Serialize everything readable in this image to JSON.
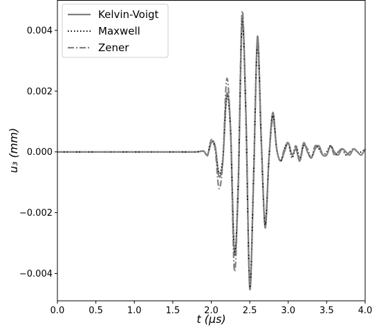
{
  "chart_data": {
    "type": "line",
    "title": "",
    "xlabel": "t (μs)",
    "ylabel": "u₃ (mm)",
    "xlim": [
      0.0,
      4.0
    ],
    "ylim": [
      -0.0049,
      0.005
    ],
    "xticks": [
      {
        "value": 0.0,
        "label": "0.0"
      },
      {
        "value": 0.5,
        "label": "0.5"
      },
      {
        "value": 1.0,
        "label": "1.0"
      },
      {
        "value": 1.5,
        "label": "1.5"
      },
      {
        "value": 2.0,
        "label": "2.0"
      },
      {
        "value": 2.5,
        "label": "2.5"
      },
      {
        "value": 3.0,
        "label": "3.0"
      },
      {
        "value": 3.5,
        "label": "3.5"
      },
      {
        "value": 4.0,
        "label": "4.0"
      }
    ],
    "yticks": [
      {
        "value": 0.004,
        "label": "0.004"
      },
      {
        "value": 0.002,
        "label": "0.002"
      },
      {
        "value": 0.0,
        "label": "0.000"
      },
      {
        "value": -0.002,
        "label": "−0.002"
      },
      {
        "value": -0.004,
        "label": "−0.004"
      }
    ],
    "grid": false,
    "legend_position": "top-left",
    "series": [
      {
        "name": "Kelvin-Voigt",
        "style": "solid",
        "color": "#808080",
        "x": [
          0.0,
          1.5,
          1.8,
          1.9,
          1.95,
          2.0,
          2.05,
          2.1,
          2.15,
          2.2,
          2.25,
          2.3,
          2.35,
          2.4,
          2.45,
          2.5,
          2.55,
          2.6,
          2.65,
          2.7,
          2.75,
          2.8,
          2.85,
          2.9,
          2.95,
          3.0,
          3.05,
          3.1,
          3.15,
          3.2,
          3.25,
          3.3,
          3.35,
          3.4,
          3.45,
          3.5,
          3.55,
          3.6,
          3.65,
          3.7,
          3.75,
          3.8,
          3.85,
          3.9,
          3.95,
          4.0
        ],
        "y": [
          0.0,
          0.0,
          0.0,
          2e-05,
          -0.0001,
          0.0003,
          0.0002,
          -0.0008,
          -0.0003,
          0.0019,
          0.0008,
          -0.0033,
          -0.0012,
          0.0043,
          0.0013,
          -0.0045,
          -0.0009,
          0.0038,
          0.0004,
          -0.0025,
          -0.0002,
          0.0013,
          0.0001,
          -0.0003,
          0.0,
          0.0003,
          -0.0001,
          0.0001,
          -0.0003,
          0.0003,
          0.0,
          -0.0002,
          0.0001,
          0.0002,
          -0.0001,
          -0.0001,
          0.0002,
          0.0,
          -0.0001,
          0.0001,
          0.0,
          -0.0001,
          0.0001,
          0.0,
          -0.0001,
          0.0001
        ]
      },
      {
        "name": "Maxwell",
        "style": "dotted",
        "color": "#000000",
        "x": [
          0.0,
          1.5,
          1.8,
          1.9,
          1.95,
          2.0,
          2.05,
          2.1,
          2.15,
          2.2,
          2.25,
          2.3,
          2.35,
          2.4,
          2.45,
          2.5,
          2.55,
          2.6,
          2.65,
          2.7,
          2.75,
          2.8,
          2.85,
          2.9,
          2.95,
          3.0,
          3.05,
          3.1,
          3.15,
          3.2,
          3.25,
          3.3,
          3.35,
          3.4,
          3.45,
          3.5,
          3.55,
          3.6,
          3.65,
          3.7,
          3.75,
          3.8,
          3.85,
          3.9,
          3.95,
          4.0
        ],
        "y": [
          0.0,
          0.0,
          0.0,
          3e-05,
          -0.00012,
          0.0004,
          0.0001,
          -0.0007,
          -0.0002,
          0.0018,
          0.0007,
          -0.0034,
          -0.001,
          0.0044,
          0.0011,
          -0.0044,
          -0.0007,
          0.0036,
          0.0003,
          -0.0024,
          -0.0002,
          0.0012,
          0.0001,
          -0.0003,
          0.0001,
          0.0003,
          -0.0002,
          0.0002,
          -0.0002,
          0.0002,
          0.0001,
          -0.0002,
          0.0002,
          0.0001,
          -0.0001,
          0.0,
          0.0002,
          -0.0001,
          0.0,
          0.0001,
          -0.0001,
          0.0,
          0.0001,
          0.0,
          0.0,
          0.0001
        ]
      },
      {
        "name": "Zener",
        "style": "dashdot",
        "color": "#808080",
        "x": [
          0.0,
          1.5,
          1.8,
          1.9,
          1.95,
          2.0,
          2.05,
          2.1,
          2.15,
          2.2,
          2.25,
          2.3,
          2.35,
          2.4,
          2.45,
          2.5,
          2.55,
          2.6,
          2.65,
          2.7,
          2.75,
          2.8,
          2.85,
          2.9,
          2.95,
          3.0,
          3.05,
          3.1,
          3.15,
          3.2,
          3.25,
          3.3,
          3.35,
          3.4,
          3.45,
          3.5,
          3.55,
          3.6,
          3.65,
          3.7,
          3.75,
          3.8,
          3.85,
          3.9,
          3.95,
          4.0
        ],
        "y": [
          0.0,
          0.0,
          0.0,
          3e-05,
          -0.00013,
          0.0004,
          0.0001,
          -0.0012,
          -0.0003,
          0.0024,
          0.0007,
          -0.0039,
          -0.0011,
          0.0046,
          0.0012,
          -0.0043,
          -0.0008,
          0.0036,
          0.0003,
          -0.0023,
          -0.0002,
          0.0011,
          0.0001,
          -0.0003,
          0.0001,
          0.0003,
          -0.0001,
          0.0002,
          -0.0003,
          0.0002,
          0.0001,
          -0.0002,
          0.0002,
          0.0001,
          -0.0001,
          -0.0001,
          0.0002,
          -0.0001,
          0.0,
          0.0001,
          -0.0001,
          0.0,
          0.0001,
          0.0,
          -0.0001,
          0.0001
        ]
      }
    ]
  }
}
